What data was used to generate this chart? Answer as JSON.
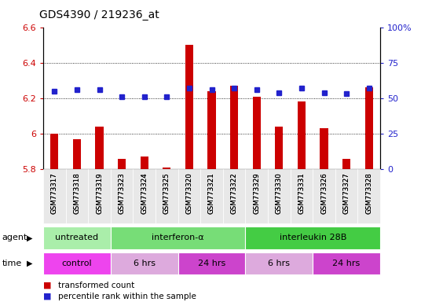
{
  "title": "GDS4390 / 219236_at",
  "samples": [
    "GSM773317",
    "GSM773318",
    "GSM773319",
    "GSM773323",
    "GSM773324",
    "GSM773325",
    "GSM773320",
    "GSM773321",
    "GSM773322",
    "GSM773329",
    "GSM773330",
    "GSM773331",
    "GSM773326",
    "GSM773327",
    "GSM773328"
  ],
  "transformed_count": [
    6.0,
    5.97,
    6.04,
    5.86,
    5.87,
    5.81,
    6.5,
    6.24,
    6.27,
    6.21,
    6.04,
    6.18,
    6.03,
    5.86,
    6.26
  ],
  "percentile_rank": [
    55,
    56,
    56,
    51,
    51,
    51,
    57,
    56,
    57,
    56,
    54,
    57,
    54,
    53,
    57
  ],
  "ylim_left": [
    5.8,
    6.6
  ],
  "ylim_right": [
    0,
    100
  ],
  "yticks_left": [
    5.8,
    6.0,
    6.2,
    6.4,
    6.6
  ],
  "yticks_right": [
    0,
    25,
    50,
    75,
    100
  ],
  "bar_color": "#cc0000",
  "dot_color": "#2222cc",
  "agent_groups": [
    {
      "label": "untreated",
      "start": 0,
      "end": 3,
      "color": "#aaeeaa"
    },
    {
      "label": "interferon-α",
      "start": 3,
      "end": 9,
      "color": "#77dd77"
    },
    {
      "label": "interleukin 28B",
      "start": 9,
      "end": 15,
      "color": "#44cc44"
    }
  ],
  "time_groups": [
    {
      "label": "control",
      "start": 0,
      "end": 3,
      "color": "#ee44ee"
    },
    {
      "label": "6 hrs",
      "start": 3,
      "end": 6,
      "color": "#ddaadd"
    },
    {
      "label": "24 hrs",
      "start": 6,
      "end": 9,
      "color": "#cc44cc"
    },
    {
      "label": "6 hrs",
      "start": 9,
      "end": 12,
      "color": "#ddaadd"
    },
    {
      "label": "24 hrs",
      "start": 12,
      "end": 15,
      "color": "#cc44cc"
    }
  ],
  "legend_items": [
    {
      "label": "transformed count",
      "color": "#cc0000"
    },
    {
      "label": "percentile rank within the sample",
      "color": "#2222cc"
    }
  ],
  "bg_color": "#ffffff",
  "tick_label_color_left": "#cc0000",
  "tick_label_color_right": "#2222cc",
  "grid_yticks": [
    6.0,
    6.2,
    6.4
  ],
  "bar_width": 0.35
}
